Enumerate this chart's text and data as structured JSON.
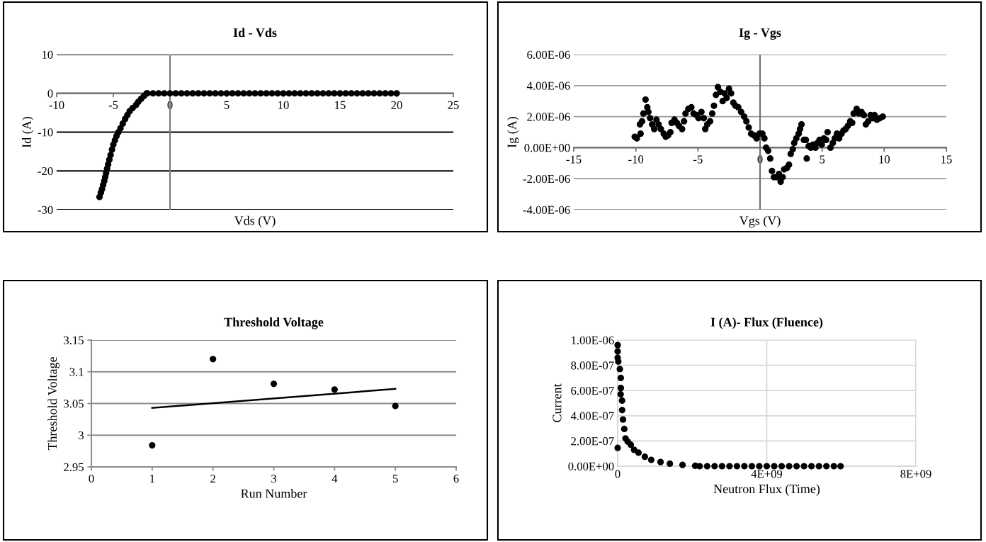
{
  "chart_data": [
    {
      "type": "scatter",
      "title": "Id - Vds",
      "xlabel": "Vds (V)",
      "ylabel": "Id (A)",
      "xlim": [
        -10,
        25
      ],
      "ylim": [
        -30,
        10
      ],
      "xticks": [
        -10,
        -5,
        0,
        5,
        10,
        15,
        20,
        25
      ],
      "yticks": [
        -30,
        -20,
        -10,
        0,
        10
      ],
      "grid": "y",
      "series": [
        {
          "marker": "circle",
          "color": "#000000",
          "x": [
            -6.22,
            -6.1,
            -6.0,
            -5.9,
            -5.8,
            -5.72,
            -5.64,
            -5.55,
            -5.46,
            -5.35,
            -5.24,
            -5.12,
            -5.0,
            -4.86,
            -4.72,
            -4.55,
            -4.37,
            -4.17,
            -3.96,
            -3.76,
            -3.56,
            -3.3,
            -3.0,
            -2.8,
            -2.55,
            -2.3,
            -2.06,
            -2.0,
            -1.5,
            -1.0,
            -0.5,
            0.0,
            0.5,
            1.0,
            1.5,
            2.0,
            2.5,
            3.0,
            3.5,
            4.0,
            4.5,
            5.0,
            5.5,
            6.0,
            6.5,
            7.0,
            7.5,
            8.0,
            8.5,
            9.0,
            9.5,
            10.0,
            10.5,
            11.0,
            11.5,
            12.0,
            12.5,
            13.0,
            13.5,
            14.0,
            14.5,
            15.0,
            15.5,
            16.0,
            16.5,
            17.0,
            17.5,
            18.0,
            18.5,
            19.0,
            19.5,
            20.0
          ],
          "values": [
            -26.7,
            -25.6,
            -24.7,
            -23.6,
            -22.6,
            -21.6,
            -20.6,
            -19.4,
            -18.3,
            -17.1,
            -15.9,
            -14.5,
            -13.2,
            -12.1,
            -11.0,
            -10.0,
            -9.0,
            -7.8,
            -6.6,
            -5.6,
            -4.6,
            -3.8,
            -3.0,
            -2.2,
            -1.4,
            -0.7,
            0,
            0,
            0,
            0,
            0,
            0,
            0,
            0,
            0,
            0,
            0,
            0,
            0,
            0,
            0,
            0,
            0,
            0,
            0,
            0,
            0,
            0,
            0,
            0,
            0,
            0,
            0,
            0,
            0,
            0,
            0,
            0,
            0,
            0,
            0,
            0,
            0,
            0,
            0,
            0,
            0,
            0,
            0,
            0,
            0,
            0
          ]
        }
      ]
    },
    {
      "type": "scatter",
      "title": "Ig - Vgs",
      "xlabel": "Vgs (V)",
      "ylabel": "Ig (A)",
      "xlim": [
        -15,
        15
      ],
      "ylim": [
        -4e-06,
        6e-06
      ],
      "xticks": [
        -15,
        -10,
        -5,
        0,
        5,
        10,
        15
      ],
      "yticks": [
        {
          "value": -4e-06,
          "label": "-4.00E-06"
        },
        {
          "value": -2e-06,
          "label": "-2.00E-06"
        },
        {
          "value": 0,
          "label": "0.00E+00"
        },
        {
          "value": 2e-06,
          "label": "2.00E-06"
        },
        {
          "value": 4e-06,
          "label": "4.00E-06"
        },
        {
          "value": 6e-06,
          "label": "6.00E-06"
        }
      ],
      "grid": "y",
      "series": [
        {
          "marker": "circle",
          "color": "#000000",
          "x": [
            -10.09,
            -9.92,
            -9.62,
            -9.67,
            -9.5,
            -9.39,
            -9.22,
            -9.08,
            -8.99,
            -8.85,
            -8.69,
            -8.52,
            -8.34,
            -8.17,
            -7.99,
            -7.75,
            -7.59,
            -7.4,
            -7.22,
            -7.12,
            -6.89,
            -6.7,
            -6.52,
            -6.28,
            -6.12,
            -6.0,
            -5.77,
            -5.53,
            -5.35,
            -5.11,
            -4.95,
            -4.72,
            -4.53,
            -4.41,
            -4.25,
            -4.02,
            -3.85,
            -3.71,
            -3.55,
            -3.39,
            -3.2,
            -3.01,
            -2.85,
            -2.69,
            -2.5,
            -2.33,
            -2.15,
            -1.98,
            -1.75,
            -1.52,
            -1.28,
            -1.1,
            -0.91,
            -0.72,
            -0.51,
            -0.28,
            -0.05,
            0.19,
            0.35,
            0.49,
            0.65,
            0.82,
            0.96,
            1.12,
            1.35,
            1.52,
            1.66,
            1.82,
            1.94,
            2.17,
            2.33,
            2.47,
            2.64,
            2.75,
            2.92,
            3.11,
            3.22,
            3.34,
            3.53,
            3.69,
            3.76,
            3.92,
            4.09,
            4.27,
            4.46,
            4.62,
            4.79,
            4.97,
            5.14,
            5.32,
            5.44,
            5.67,
            5.86,
            6.02,
            6.19,
            6.37,
            6.56,
            6.72,
            6.89,
            7.07,
            7.26,
            7.42,
            7.54,
            7.78,
            7.96,
            8.17,
            8.36,
            8.52,
            8.71,
            8.9,
            9.06,
            9.22,
            9.41,
            9.64,
            9.88
          ],
          "values": [
            7e-07,
            6e-07,
            9e-07,
            1.5e-06,
            1.7e-06,
            2.2e-06,
            3.1e-06,
            2.6e-06,
            2.3e-06,
            1.9e-06,
            1.5e-06,
            1.2e-06,
            1.8e-06,
            1.5e-06,
            1.2e-06,
            9e-07,
            7e-07,
            8e-07,
            1e-06,
            1.6e-06,
            1.8e-06,
            1.6e-06,
            1.4e-06,
            1.2e-06,
            1.7e-06,
            2.2e-06,
            2.5e-06,
            2.6e-06,
            2.2e-06,
            2.1e-06,
            1.9e-06,
            2.3e-06,
            1.9e-06,
            1.2e-06,
            1.5e-06,
            1.7e-06,
            2.2e-06,
            2.7e-06,
            3.4e-06,
            3.9e-06,
            3.6e-06,
            3e-06,
            3.5e-06,
            3.2e-06,
            3.8e-06,
            3.5e-06,
            2.9e-06,
            2.7e-06,
            2.6e-06,
            2.3e-06,
            2e-06,
            1.7e-06,
            1.3e-06,
            9e-07,
            8e-07,
            6e-07,
            9e-07,
            9e-07,
            6e-07,
            0.0,
            -2e-07,
            -7e-07,
            -1.5e-06,
            -1.9e-06,
            -1.9e-06,
            -1.7e-06,
            -2.2e-06,
            -1.9e-06,
            -1.4e-06,
            -1.3e-06,
            -1.1e-06,
            -4e-07,
            -1e-07,
            3e-07,
            6e-07,
            9e-07,
            1.2e-06,
            1.5e-06,
            5e-07,
            5e-07,
            -7e-07,
            1e-07,
            0.0,
            2e-07,
            0.0,
            3e-07,
            5e-07,
            2e-07,
            6e-07,
            5e-07,
            1e-06,
            0.0,
            3e-07,
            6e-07,
            9e-07,
            6e-07,
            9e-07,
            1.1e-06,
            1.2e-06,
            1.4e-06,
            1.7e-06,
            1.6e-06,
            2.2e-06,
            2.5e-06,
            2.2e-06,
            2.3e-06,
            2.1e-06,
            1.5e-06,
            1.7e-06,
            2.1e-06,
            1.9e-06,
            2.1e-06,
            1.8e-06,
            1.9e-06,
            2e-06
          ]
        }
      ]
    },
    {
      "type": "scatter",
      "title": "Threshold Voltage",
      "xlabel": "Run Number",
      "ylabel": "Threshold Voltage",
      "xlim": [
        0,
        6
      ],
      "ylim": [
        2.95,
        3.15
      ],
      "xticks": [
        0,
        1,
        2,
        3,
        4,
        5,
        6
      ],
      "yticks": [
        2.95,
        3,
        3.05,
        3.1,
        3.15
      ],
      "grid": "y",
      "series": [
        {
          "marker": "circle",
          "color": "#000000",
          "x": [
            1,
            2,
            3,
            4,
            5
          ],
          "values": [
            2.984,
            3.12,
            3.081,
            3.072,
            3.046
          ]
        },
        {
          "type": "line",
          "color": "#000000",
          "x": [
            1,
            5
          ],
          "values": [
            3.043,
            3.073
          ]
        }
      ]
    },
    {
      "type": "scatter",
      "title": "I (A)- Flux (Fluence)",
      "xlabel": "Neutron Flux (Time)",
      "ylabel": "Current",
      "xlim": [
        0,
        8000000000.0
      ],
      "ylim": [
        0,
        1e-06
      ],
      "xticks": [
        {
          "value": 0,
          "label": "0"
        },
        {
          "value": 4000000000.0,
          "label": "4E+09"
        },
        {
          "value": 8000000000.0,
          "label": "8E+09"
        }
      ],
      "yticks": [
        {
          "value": 0,
          "label": "0.00E+00"
        },
        {
          "value": 2e-07,
          "label": "2.00E-07"
        },
        {
          "value": 4e-07,
          "label": "4.00E-07"
        },
        {
          "value": 6e-07,
          "label": "6.00E-07"
        },
        {
          "value": 8e-07,
          "label": "8.00E-07"
        },
        {
          "value": 1e-06,
          "label": "1.00E-06"
        }
      ],
      "grid": true,
      "series": [
        {
          "marker": "circle",
          "color": "#000000",
          "x": [
            0,
            0,
            0,
            0,
            17000000.0,
            59000000.0,
            84000000.0,
            84000000.0,
            80000000.0,
            118000000.0,
            120000000.0,
            143000000.0,
            177000000.0,
            210000000.0,
            270000000.0,
            350000000.0,
            440000000.0,
            560000000.0,
            730000000.0,
            900000000.0,
            1150000000.0,
            1400000000.0,
            1740000000.0,
            2080000000.0,
            2200000000.0,
            2400000000.0,
            2600000000.0,
            2800000000.0,
            3000000000.0,
            3200000000.0,
            3400000000.0,
            3600000000.0,
            3800000000.0,
            4000000000.0,
            4200000000.0,
            4400000000.0,
            4600000000.0,
            4800000000.0,
            5000000000.0,
            5200000000.0,
            5400000000.0,
            5600000000.0,
            5800000000.0,
            5980000000.0
          ],
          "values": [
            9.6e-07,
            1.45e-07,
            9.1e-07,
            8.6e-07,
            8.3e-07,
            7.7e-07,
            7e-07,
            6.2e-07,
            5.7e-07,
            5.2e-07,
            4.45e-07,
            3.7e-07,
            2.95e-07,
            2.2e-07,
            1.95e-07,
            1.7e-07,
            1.3e-07,
            1.07e-07,
            7.5e-08,
            5e-08,
            3.3e-08,
            2e-08,
            1e-08,
            3e-09,
            0,
            0,
            0,
            0,
            0,
            0,
            0,
            0,
            0,
            0,
            0,
            0,
            0,
            0,
            0,
            0,
            0,
            0,
            0,
            0
          ]
        }
      ]
    }
  ]
}
